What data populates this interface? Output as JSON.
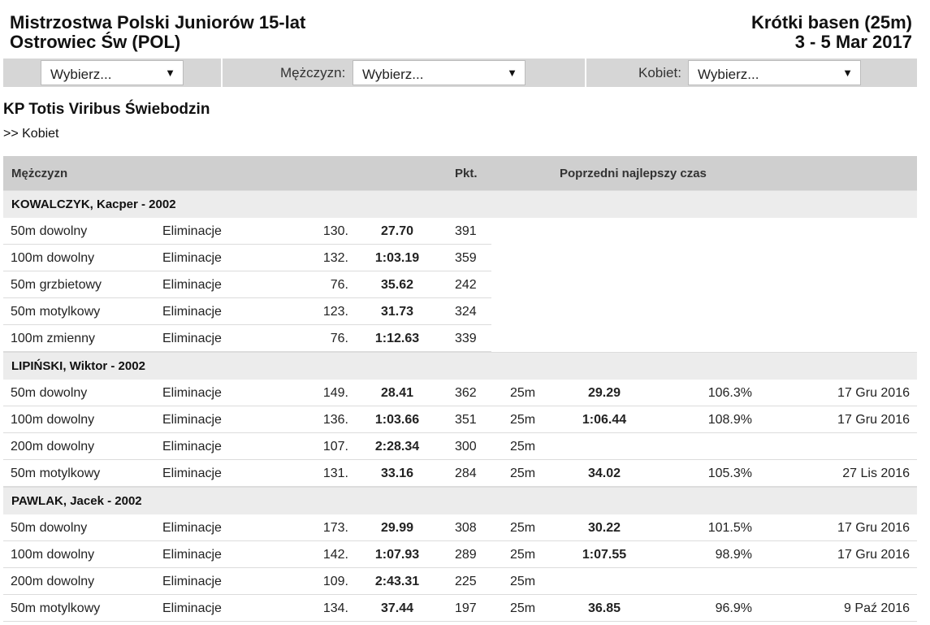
{
  "header": {
    "title_line1": "Mistrzostwa Polski Juniorów 15-lat",
    "title_line2": "Ostrowiec Św (POL)",
    "course": "Krótki basen (25m)",
    "dates": "3 - 5 Mar 2017"
  },
  "filters": {
    "club_select": "Wybierz...",
    "men_label": "Mężczyzn:",
    "men_select": "Wybierz...",
    "women_label": "Kobiet:",
    "women_select": "Wybierz..."
  },
  "club_name": "KP Totis Viribus Świebodzin",
  "kobiet_link": ">> Kobiet",
  "table": {
    "col_gender": "Mężczyzn",
    "col_points": "Pkt.",
    "col_prev_best": "Poprzedni najlepszy czas",
    "athletes": [
      {
        "name": "KOWALCZYK, Kacper - 2002",
        "results": [
          {
            "event": "50m dowolny",
            "round": "Eliminacje",
            "place": "130.",
            "time": "27.70",
            "points": "391"
          },
          {
            "event": "100m dowolny",
            "round": "Eliminacje",
            "place": "132.",
            "time": "1:03.19",
            "points": "359"
          },
          {
            "event": "50m grzbietowy",
            "round": "Eliminacje",
            "place": "76.",
            "time": "35.62",
            "points": "242"
          },
          {
            "event": "50m motylkowy",
            "round": "Eliminacje",
            "place": "123.",
            "time": "31.73",
            "points": "324"
          },
          {
            "event": "100m zmienny",
            "round": "Eliminacje",
            "place": "76.",
            "time": "1:12.63",
            "points": "339"
          }
        ]
      },
      {
        "name": "LIPIŃSKI, Wiktor - 2002",
        "results": [
          {
            "event": "50m dowolny",
            "round": "Eliminacje",
            "place": "149.",
            "time": "28.41",
            "points": "362",
            "pool": "25m",
            "prev_time": "29.29",
            "pct": "106.3%",
            "date": "17 Gru 2016"
          },
          {
            "event": "100m dowolny",
            "round": "Eliminacje",
            "place": "136.",
            "time": "1:03.66",
            "points": "351",
            "pool": "25m",
            "prev_time": "1:06.44",
            "pct": "108.9%",
            "date": "17 Gru 2016"
          },
          {
            "event": "200m dowolny",
            "round": "Eliminacje",
            "place": "107.",
            "time": "2:28.34",
            "points": "300",
            "pool": "25m"
          },
          {
            "event": "50m motylkowy",
            "round": "Eliminacje",
            "place": "131.",
            "time": "33.16",
            "points": "284",
            "pool": "25m",
            "prev_time": "34.02",
            "pct": "105.3%",
            "date": "27 Lis 2016"
          }
        ]
      },
      {
        "name": "PAWLAK, Jacek - 2002",
        "results": [
          {
            "event": "50m dowolny",
            "round": "Eliminacje",
            "place": "173.",
            "time": "29.99",
            "points": "308",
            "pool": "25m",
            "prev_time": "30.22",
            "pct": "101.5%",
            "date": "17 Gru 2016"
          },
          {
            "event": "100m dowolny",
            "round": "Eliminacje",
            "place": "142.",
            "time": "1:07.93",
            "points": "289",
            "pool": "25m",
            "prev_time": "1:07.55",
            "pct": "98.9%",
            "date": "17 Gru 2016"
          },
          {
            "event": "200m dowolny",
            "round": "Eliminacje",
            "place": "109.",
            "time": "2:43.31",
            "points": "225",
            "pool": "25m"
          },
          {
            "event": "50m motylkowy",
            "round": "Eliminacje",
            "place": "134.",
            "time": "37.44",
            "points": "197",
            "pool": "25m",
            "prev_time": "36.85",
            "pct": "96.9%",
            "date": "9 Paź 2016"
          }
        ]
      }
    ]
  }
}
